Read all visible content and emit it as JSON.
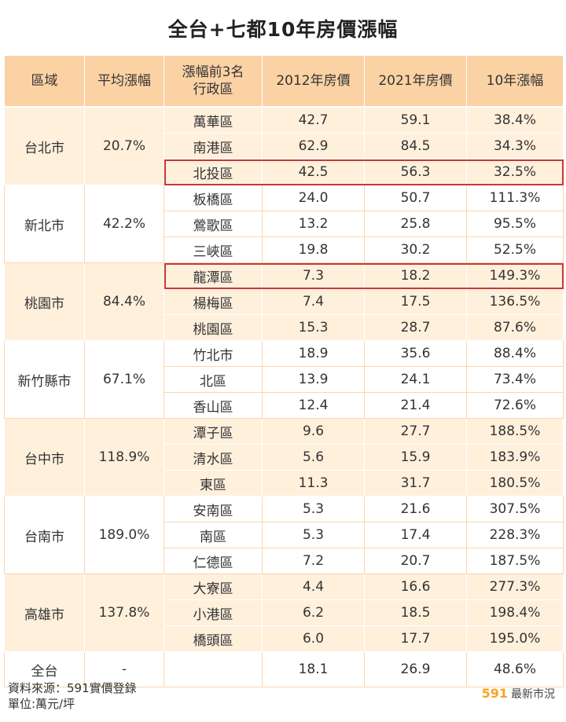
{
  "title": "全台+七都10年房價漲幅",
  "headers": [
    "區域",
    "平均漲幅",
    "漲幅前3名\n行政區",
    "2012年房價",
    "2021年房價",
    "10年漲幅"
  ],
  "groups": [
    {
      "region": "台北市",
      "avg": "20.7%",
      "shade": "orange",
      "rows": [
        {
          "district": "萬華區",
          "p2012": "42.7",
          "p2021": "59.1",
          "rise": "38.4%"
        },
        {
          "district": "南港區",
          "p2012": "62.9",
          "p2021": "84.5",
          "rise": "34.3%"
        },
        {
          "district": "北投區",
          "p2012": "42.5",
          "p2021": "56.3",
          "rise": "32.5%"
        }
      ]
    },
    {
      "region": "新北市",
      "avg": "42.2%",
      "shade": "white",
      "rows": [
        {
          "district": "板橋區",
          "p2012": "24.0",
          "p2021": "50.7",
          "rise": "111.3%"
        },
        {
          "district": "鶯歌區",
          "p2012": "13.2",
          "p2021": "25.8",
          "rise": "95.5%"
        },
        {
          "district": "三峽區",
          "p2012": "19.8",
          "p2021": "30.2",
          "rise": "52.5%"
        }
      ]
    },
    {
      "region": "桃園市",
      "avg": "84.4%",
      "shade": "orange",
      "rows": [
        {
          "district": "龍潭區",
          "p2012": "7.3",
          "p2021": "18.2",
          "rise": "149.3%"
        },
        {
          "district": "楊梅區",
          "p2012": "7.4",
          "p2021": "17.5",
          "rise": "136.5%"
        },
        {
          "district": "桃園區",
          "p2012": "15.3",
          "p2021": "28.7",
          "rise": "87.6%"
        }
      ]
    },
    {
      "region": "新竹縣市",
      "avg": "67.1%",
      "shade": "white",
      "rows": [
        {
          "district": "竹北市",
          "p2012": "18.9",
          "p2021": "35.6",
          "rise": "88.4%"
        },
        {
          "district": "北區",
          "p2012": "13.9",
          "p2021": "24.1",
          "rise": "73.4%"
        },
        {
          "district": "香山區",
          "p2012": "12.4",
          "p2021": "21.4",
          "rise": "72.6%"
        }
      ]
    },
    {
      "region": "台中市",
      "avg": "118.9%",
      "shade": "orange",
      "rows": [
        {
          "district": "潭子區",
          "p2012": "9.6",
          "p2021": "27.7",
          "rise": "188.5%"
        },
        {
          "district": "清水區",
          "p2012": "5.6",
          "p2021": "15.9",
          "rise": "183.9%"
        },
        {
          "district": "東區",
          "p2012": "11.3",
          "p2021": "31.7",
          "rise": "180.5%"
        }
      ]
    },
    {
      "region": "台南市",
      "avg": "189.0%",
      "shade": "white",
      "rows": [
        {
          "district": "安南區",
          "p2012": "5.3",
          "p2021": "21.6",
          "rise": "307.5%"
        },
        {
          "district": "南區",
          "p2012": "5.3",
          "p2021": "17.4",
          "rise": "228.3%"
        },
        {
          "district": "仁德區",
          "p2012": "7.2",
          "p2021": "20.7",
          "rise": "187.5%"
        }
      ]
    },
    {
      "region": "高雄市",
      "avg": "137.8%",
      "shade": "orange",
      "rows": [
        {
          "district": "大寮區",
          "p2012": "4.4",
          "p2021": "16.6",
          "rise": "277.3%"
        },
        {
          "district": "小港區",
          "p2012": "6.2",
          "p2021": "18.5",
          "rise": "198.4%"
        },
        {
          "district": "橋頭區",
          "p2012": "6.0",
          "p2021": "17.7",
          "rise": "195.0%"
        }
      ]
    }
  ],
  "total": {
    "region": "全台",
    "avg": "-",
    "district": "",
    "p2012": "18.1",
    "p2021": "26.9",
    "rise": "48.6%"
  },
  "highlighted_districts": [
    "北投區",
    "龍潭區"
  ],
  "colors": {
    "header": "#fbd2a4",
    "shade_orange": "#fff0dc",
    "highlight_border": "#c8373a",
    "brand": "#f5a51f"
  },
  "footer": {
    "source": "資料來源：591實價登錄",
    "unit": "單位:萬元/坪",
    "brand_number": "591",
    "brand_text": "最新市況"
  }
}
